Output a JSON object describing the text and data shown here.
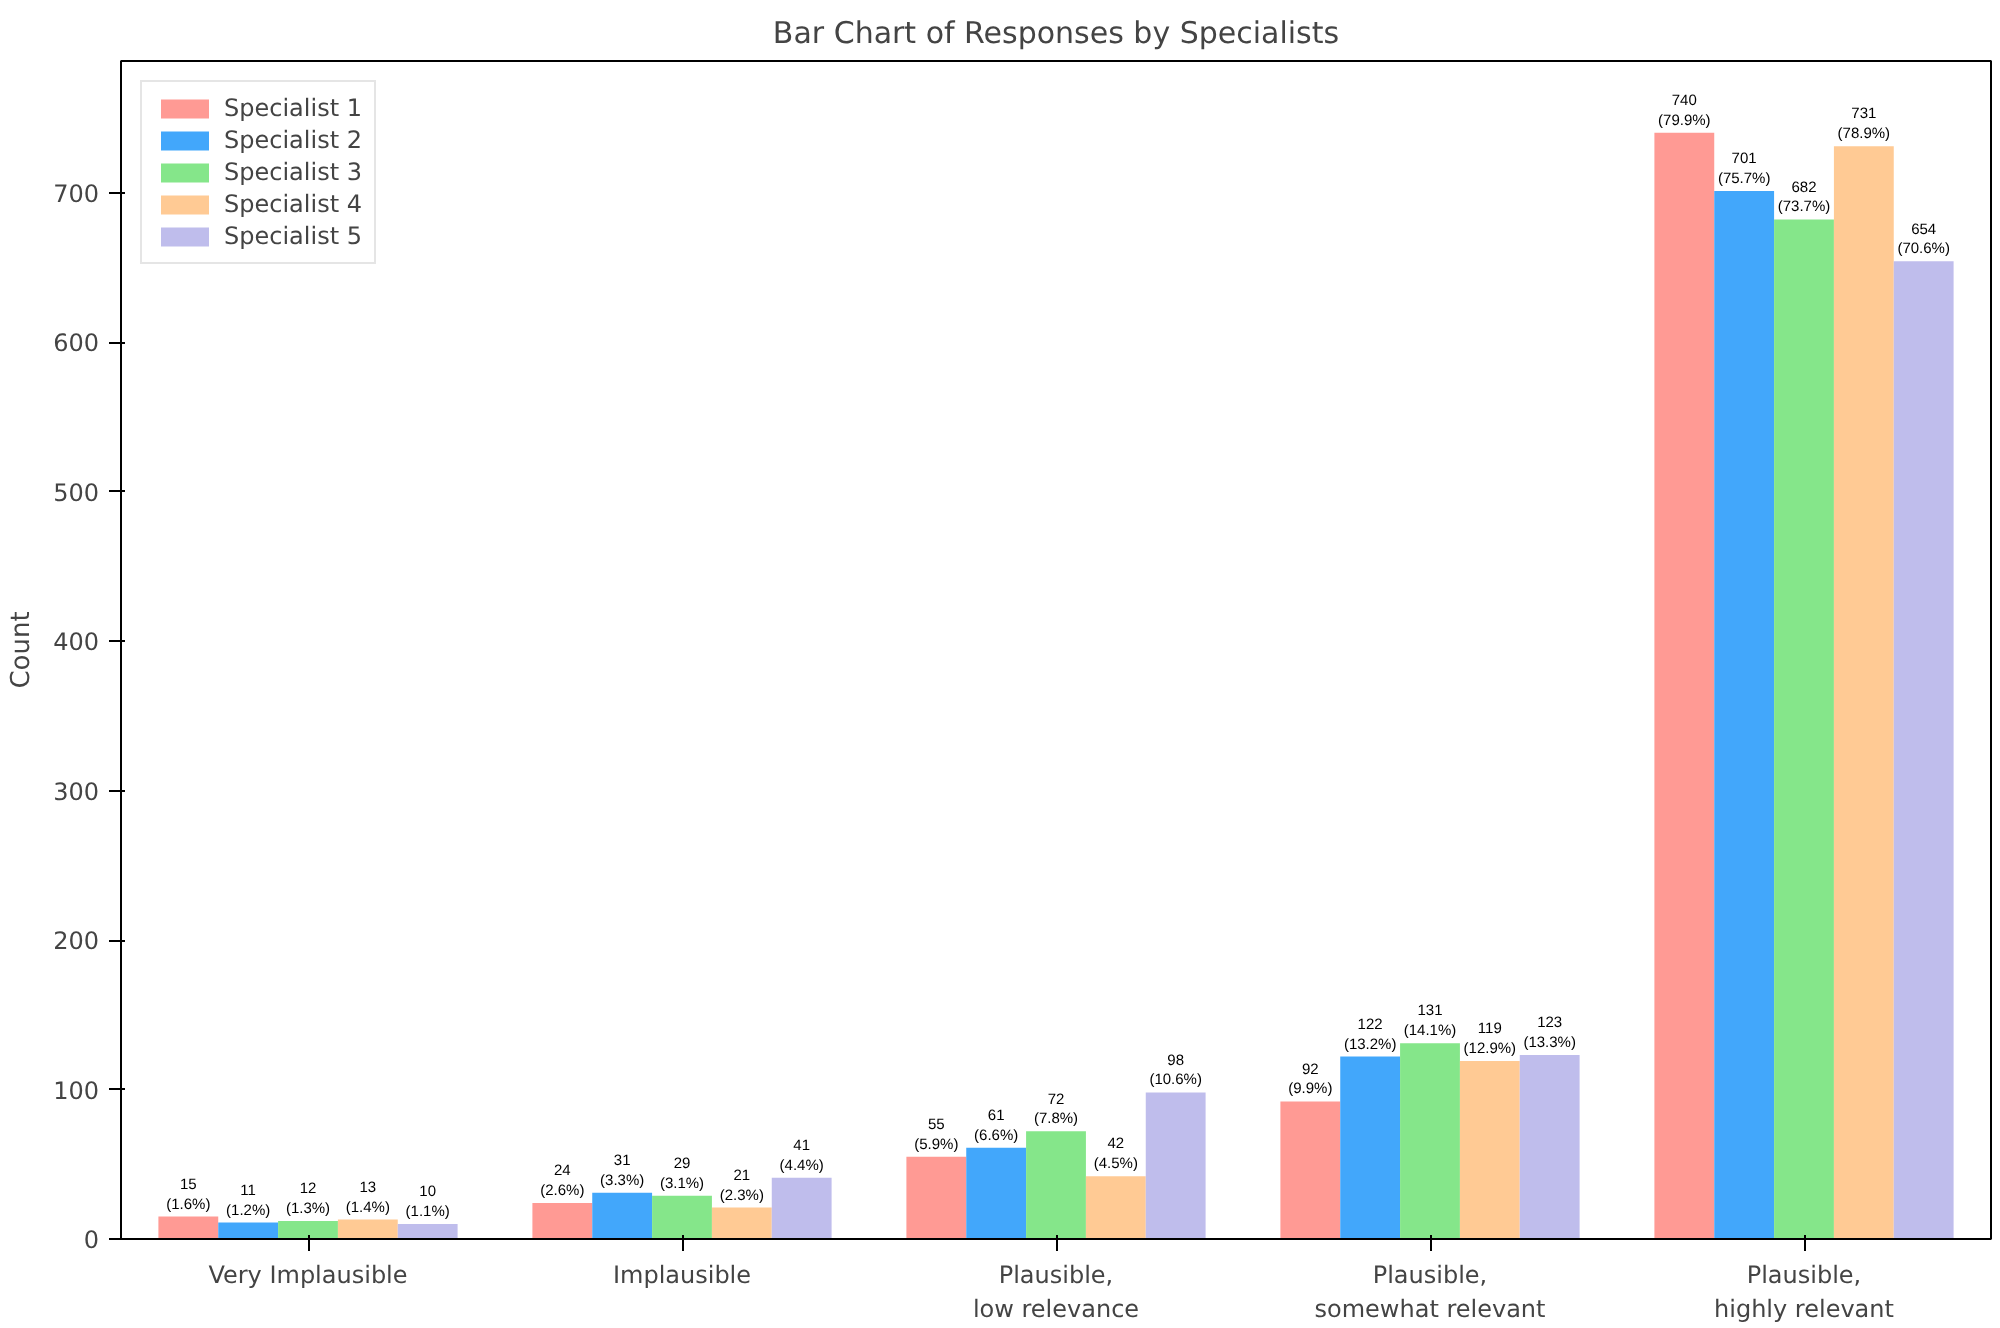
{
  "chart_data": {
    "type": "bar",
    "title": "Bar Chart of Responses by Specialists",
    "ylabel": "Count",
    "categories": [
      "Very Implausible",
      "Implausible",
      "Plausible,\nlow relevance",
      "Plausible,\nsomewhat relevant",
      "Plausible,\nhighly relevant"
    ],
    "series": [
      {
        "name": "Specialist 1",
        "color": "#ff9a94",
        "values": [
          15,
          24,
          55,
          92,
          740
        ],
        "value_labels": [
          "15\n(1.6%)",
          "24\n(2.6%)",
          "55\n(5.9%)",
          "92\n(9.9%)",
          "740\n(79.9%)"
        ]
      },
      {
        "name": "Specialist 2",
        "color": "#42a7fb",
        "values": [
          11,
          31,
          61,
          122,
          701
        ],
        "value_labels": [
          "11\n(1.2%)",
          "31\n(3.3%)",
          "61\n(6.6%)",
          "122\n(13.2%)",
          "701\n(75.7%)"
        ]
      },
      {
        "name": "Specialist 3",
        "color": "#85e68a",
        "values": [
          12,
          29,
          72,
          131,
          682
        ],
        "value_labels": [
          "12\n(1.3%)",
          "29\n(3.1%)",
          "72\n(7.8%)",
          "131\n(14.1%)",
          "682\n(73.7%)"
        ]
      },
      {
        "name": "Specialist 4",
        "color": "#ffca94",
        "values": [
          13,
          21,
          42,
          119,
          731
        ],
        "value_labels": [
          "13\n(1.4%)",
          "21\n(2.3%)",
          "42\n(4.5%)",
          "119\n(12.9%)",
          "731\n(78.9%)"
        ]
      },
      {
        "name": "Specialist 5",
        "color": "#bfbdec",
        "values": [
          10,
          41,
          98,
          123,
          654
        ],
        "value_labels": [
          "10\n(1.1%)",
          "41\n(4.4%)",
          "98\n(10.6%)",
          "123\n(13.3%)",
          "654\n(70.6%)"
        ]
      }
    ],
    "ylim": [
      0,
      788
    ],
    "yticks": [
      0,
      100,
      200,
      300,
      400,
      500,
      600,
      700
    ],
    "grid": false,
    "legend": "top left"
  }
}
